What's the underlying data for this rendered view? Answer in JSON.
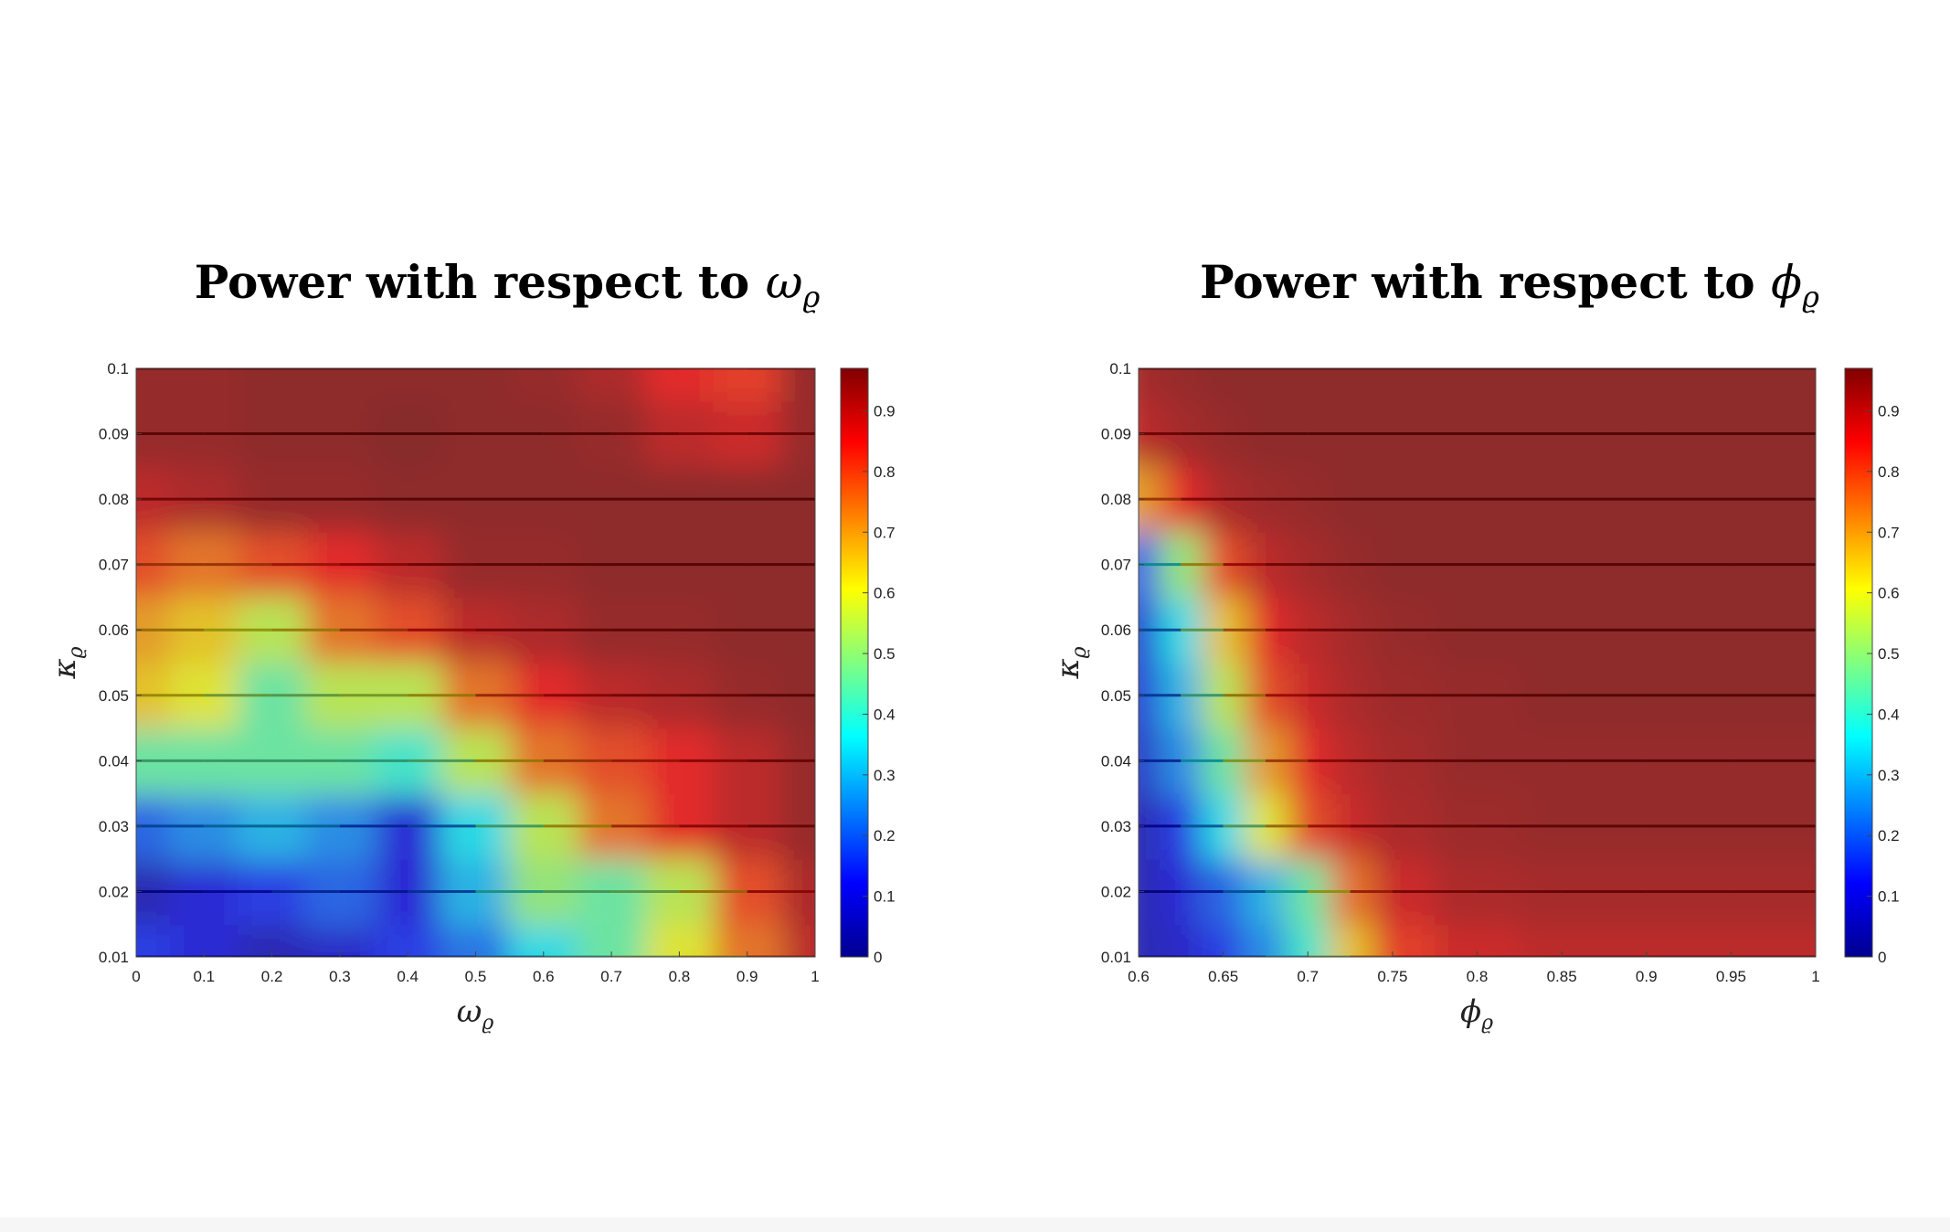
{
  "colorbar_colors": [
    "#00008f",
    "#0000ff",
    "#0080ff",
    "#00ffff",
    "#80ff80",
    "#ffff00",
    "#ff8000",
    "#ff0000",
    "#800000"
  ],
  "chart_data": [
    {
      "type": "heatmap",
      "title_text": "Power with respect to",
      "title_symbol": "ω",
      "title_subscript": "ϱ",
      "xlabel_symbol": "ω",
      "xlabel_subscript": "ϱ",
      "ylabel_symbol": "κ",
      "ylabel_subscript": "ϱ",
      "xlim": [
        0,
        1
      ],
      "ylim": [
        0.01,
        0.1
      ],
      "xticks": [
        "0",
        "0.1",
        "0.2",
        "0.3",
        "0.4",
        "0.5",
        "0.6",
        "0.7",
        "0.8",
        "0.9",
        "1"
      ],
      "yticks": [
        "0.01",
        "0.02",
        "0.03",
        "0.04",
        "0.05",
        "0.06",
        "0.07",
        "0.08",
        "0.09",
        "0.1"
      ],
      "colorbar_ticks": [
        "0",
        "0.1",
        "0.2",
        "0.3",
        "0.4",
        "0.5",
        "0.6",
        "0.7",
        "0.8",
        "0.9"
      ],
      "clim": [
        0,
        0.97
      ],
      "x": [
        0,
        0.1,
        0.2,
        0.3,
        0.4,
        0.5,
        0.6,
        0.7,
        0.8,
        0.9,
        1.0
      ],
      "y": [
        0.01,
        0.02,
        0.03,
        0.04,
        0.05,
        0.06,
        0.07,
        0.08,
        0.09,
        0.1
      ],
      "z": [
        [
          0.15,
          0.1,
          0.05,
          0.08,
          0.15,
          0.22,
          0.35,
          0.45,
          0.6,
          0.75,
          0.9
        ],
        [
          0.05,
          0.1,
          0.15,
          0.2,
          0.1,
          0.3,
          0.5,
          0.45,
          0.55,
          0.8,
          0.92
        ],
        [
          0.2,
          0.25,
          0.3,
          0.25,
          0.1,
          0.35,
          0.55,
          0.75,
          0.85,
          0.9,
          0.95
        ],
        [
          0.45,
          0.45,
          0.45,
          0.45,
          0.4,
          0.55,
          0.75,
          0.8,
          0.85,
          0.9,
          0.95
        ],
        [
          0.65,
          0.6,
          0.45,
          0.55,
          0.55,
          0.75,
          0.85,
          0.9,
          0.92,
          0.95,
          0.96
        ],
        [
          0.7,
          0.65,
          0.55,
          0.75,
          0.8,
          0.9,
          0.92,
          0.95,
          0.95,
          0.96,
          0.96
        ],
        [
          0.8,
          0.75,
          0.8,
          0.85,
          0.9,
          0.95,
          0.95,
          0.96,
          0.96,
          0.96,
          0.96
        ],
        [
          0.9,
          0.92,
          0.95,
          0.95,
          0.96,
          0.96,
          0.96,
          0.96,
          0.96,
          0.96,
          0.96
        ],
        [
          0.95,
          0.95,
          0.96,
          0.96,
          0.97,
          0.96,
          0.96,
          0.95,
          0.9,
          0.88,
          0.95
        ],
        [
          0.95,
          0.95,
          0.96,
          0.96,
          0.96,
          0.96,
          0.95,
          0.92,
          0.85,
          0.82,
          0.95
        ]
      ]
    },
    {
      "type": "heatmap",
      "title_text": "Power with respect to",
      "title_symbol": "ϕ",
      "title_subscript": "ϱ",
      "xlabel_symbol": "ϕ",
      "xlabel_subscript": "ϱ",
      "ylabel_symbol": "κ",
      "ylabel_subscript": "ϱ",
      "xlim": [
        0.6,
        1
      ],
      "ylim": [
        0.01,
        0.1
      ],
      "xticks": [
        "0.6",
        "0.65",
        "0.7",
        "0.75",
        "0.8",
        "0.85",
        "0.9",
        "0.95",
        "1"
      ],
      "yticks": [
        "0.01",
        "0.02",
        "0.03",
        "0.04",
        "0.05",
        "0.06",
        "0.07",
        "0.08",
        "0.09",
        "0.1"
      ],
      "colorbar_ticks": [
        "0",
        "0.1",
        "0.2",
        "0.3",
        "0.4",
        "0.5",
        "0.6",
        "0.7",
        "0.8",
        "0.9"
      ],
      "clim": [
        0,
        0.97
      ],
      "x": [
        0.6,
        0.625,
        0.65,
        0.675,
        0.7,
        0.725,
        0.75,
        0.8,
        0.85,
        0.9,
        0.95,
        1.0
      ],
      "y": [
        0.01,
        0.02,
        0.03,
        0.04,
        0.05,
        0.06,
        0.07,
        0.08,
        0.09,
        0.1
      ],
      "z": [
        [
          0.05,
          0.08,
          0.15,
          0.25,
          0.4,
          0.65,
          0.82,
          0.88,
          0.9,
          0.9,
          0.9,
          0.9
        ],
        [
          0.05,
          0.1,
          0.2,
          0.3,
          0.45,
          0.75,
          0.88,
          0.92,
          0.93,
          0.93,
          0.93,
          0.93
        ],
        [
          0.05,
          0.15,
          0.35,
          0.6,
          0.8,
          0.88,
          0.92,
          0.94,
          0.95,
          0.95,
          0.95,
          0.95
        ],
        [
          0.08,
          0.25,
          0.45,
          0.7,
          0.85,
          0.9,
          0.93,
          0.95,
          0.95,
          0.95,
          0.95,
          0.95
        ],
        [
          0.1,
          0.3,
          0.55,
          0.8,
          0.88,
          0.92,
          0.94,
          0.95,
          0.96,
          0.96,
          0.96,
          0.96
        ],
        [
          0.1,
          0.35,
          0.65,
          0.85,
          0.9,
          0.93,
          0.95,
          0.96,
          0.96,
          0.96,
          0.96,
          0.96
        ],
        [
          0.2,
          0.5,
          0.8,
          0.9,
          0.93,
          0.95,
          0.96,
          0.96,
          0.96,
          0.96,
          0.96,
          0.96
        ],
        [
          0.7,
          0.85,
          0.92,
          0.94,
          0.95,
          0.96,
          0.96,
          0.96,
          0.96,
          0.96,
          0.96,
          0.96
        ],
        [
          0.9,
          0.93,
          0.95,
          0.96,
          0.96,
          0.96,
          0.96,
          0.96,
          0.96,
          0.96,
          0.96,
          0.96
        ],
        [
          0.93,
          0.95,
          0.96,
          0.96,
          0.96,
          0.96,
          0.96,
          0.96,
          0.96,
          0.96,
          0.96,
          0.96
        ]
      ]
    }
  ]
}
